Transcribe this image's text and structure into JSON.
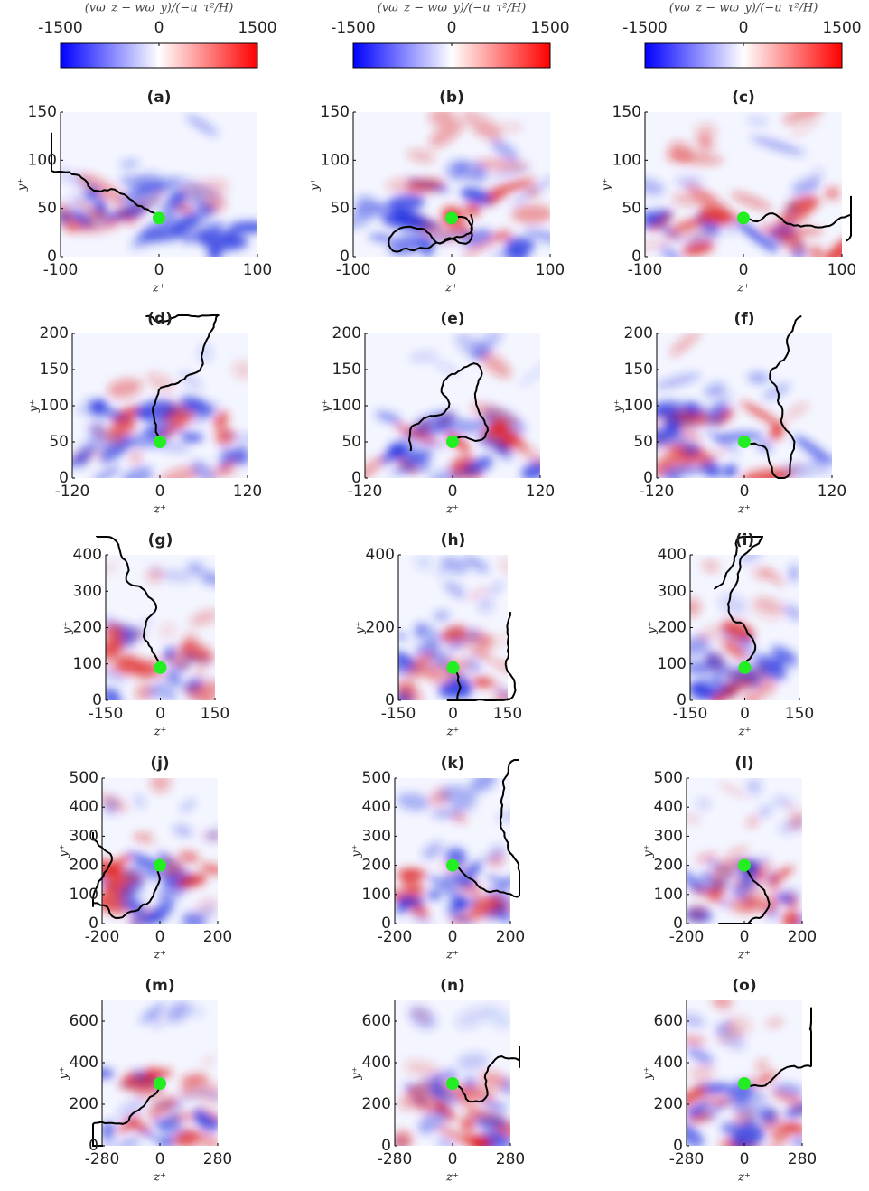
{
  "colorbars": [
    {
      "label": "(vω_z − wω_y)/(−u_τ²/H)",
      "clim": [
        -1500,
        1500
      ],
      "ticks": [
        -1500,
        0,
        1500
      ],
      "colors": [
        "#0000ff",
        "#ffffff",
        "#ff0000"
      ]
    },
    {
      "label": "(vω_z − wω_y)/(−u_τ²/H)",
      "clim": [
        -1500,
        1500
      ],
      "ticks": [
        -1500,
        0,
        1500
      ],
      "colors": [
        "#0000ff",
        "#ffffff",
        "#ff0000"
      ]
    },
    {
      "label": "(vω_z − wω_y)/(−u_τ²/H)",
      "clim": [
        -1500,
        1500
      ],
      "ticks": [
        -1500,
        0,
        1500
      ],
      "colors": [
        "#0000ff",
        "#ffffff",
        "#ff0000"
      ]
    }
  ],
  "chart_data": [
    {
      "type": "heatmap",
      "title": "(a)",
      "xlabel": "z⁺",
      "ylabel": "y⁺",
      "xlim": [
        -100,
        100
      ],
      "ylim": [
        0,
        150
      ],
      "xticks": [
        -100,
        0,
        100
      ],
      "yticks": [
        0,
        50,
        100,
        150
      ],
      "marker": [
        0,
        40
      ],
      "marker_color": "#22ee22"
    },
    {
      "type": "heatmap",
      "title": "(b)",
      "xlabel": "z⁺",
      "ylabel": "y⁺",
      "xlim": [
        -100,
        100
      ],
      "ylim": [
        0,
        150
      ],
      "xticks": [
        -100,
        0,
        100
      ],
      "yticks": [
        0,
        50,
        100,
        150
      ],
      "marker": [
        0,
        40
      ],
      "marker_color": "#22ee22"
    },
    {
      "type": "heatmap",
      "title": "(c)",
      "xlabel": "z⁺",
      "ylabel": "y⁺",
      "xlim": [
        -100,
        100
      ],
      "ylim": [
        0,
        150
      ],
      "xticks": [
        -100,
        0,
        100
      ],
      "yticks": [
        0,
        50,
        100,
        150
      ],
      "marker": [
        0,
        40
      ],
      "marker_color": "#22ee22"
    },
    {
      "type": "heatmap",
      "title": "(d)",
      "xlabel": "z⁺",
      "ylabel": "y⁺",
      "xlim": [
        -120,
        120
      ],
      "ylim": [
        0,
        200
      ],
      "xticks": [
        -120,
        0,
        120
      ],
      "yticks": [
        0,
        50,
        100,
        150,
        200
      ],
      "marker": [
        0,
        50
      ],
      "marker_color": "#22ee22"
    },
    {
      "type": "heatmap",
      "title": "(e)",
      "xlabel": "z⁺",
      "ylabel": "y⁺",
      "xlim": [
        -120,
        120
      ],
      "ylim": [
        0,
        200
      ],
      "xticks": [
        -120,
        0,
        120
      ],
      "yticks": [
        0,
        50,
        100,
        150,
        200
      ],
      "marker": [
        0,
        50
      ],
      "marker_color": "#22ee22"
    },
    {
      "type": "heatmap",
      "title": "(f)",
      "xlabel": "z⁺",
      "ylabel": "y⁺",
      "xlim": [
        -120,
        120
      ],
      "ylim": [
        0,
        200
      ],
      "xticks": [
        -120,
        0,
        120
      ],
      "yticks": [
        0,
        50,
        100,
        150,
        200
      ],
      "marker": [
        0,
        50
      ],
      "marker_color": "#22ee22"
    },
    {
      "type": "heatmap",
      "title": "(g)",
      "xlabel": "z⁺",
      "ylabel": "y⁺",
      "xlim": [
        -150,
        150
      ],
      "ylim": [
        0,
        400
      ],
      "xticks": [
        -150,
        0,
        150
      ],
      "yticks": [
        0,
        100,
        200,
        300,
        400
      ],
      "marker": [
        0,
        90
      ],
      "marker_color": "#22ee22"
    },
    {
      "type": "heatmap",
      "title": "(h)",
      "xlabel": "z⁺",
      "ylabel": "y⁺",
      "xlim": [
        -150,
        150
      ],
      "ylim": [
        0,
        400
      ],
      "xticks": [
        -150,
        0,
        150
      ],
      "yticks": [
        0,
        200,
        400
      ],
      "marker": [
        0,
        90
      ],
      "marker_color": "#22ee22"
    },
    {
      "type": "heatmap",
      "title": "(i)",
      "xlabel": "z⁺",
      "ylabel": "y⁺",
      "xlim": [
        -150,
        150
      ],
      "ylim": [
        0,
        400
      ],
      "xticks": [
        -150,
        0,
        150
      ],
      "yticks": [
        0,
        100,
        200,
        300,
        400
      ],
      "marker": [
        0,
        90
      ],
      "marker_color": "#22ee22"
    },
    {
      "type": "heatmap",
      "title": "(j)",
      "xlabel": "z⁺",
      "ylabel": "y⁺",
      "xlim": [
        -200,
        200
      ],
      "ylim": [
        0,
        500
      ],
      "xticks": [
        -200,
        0,
        200
      ],
      "yticks": [
        0,
        100,
        200,
        300,
        400,
        500
      ],
      "marker": [
        0,
        200
      ],
      "marker_color": "#22ee22"
    },
    {
      "type": "heatmap",
      "title": "(k)",
      "xlabel": "z⁺",
      "ylabel": "y⁺",
      "xlim": [
        -200,
        200
      ],
      "ylim": [
        0,
        500
      ],
      "xticks": [
        -200,
        0,
        200
      ],
      "yticks": [
        0,
        100,
        200,
        300,
        400,
        500
      ],
      "marker": [
        0,
        200
      ],
      "marker_color": "#22ee22"
    },
    {
      "type": "heatmap",
      "title": "(l)",
      "xlabel": "z⁺",
      "ylabel": "y⁺",
      "xlim": [
        -200,
        200
      ],
      "ylim": [
        0,
        500
      ],
      "xticks": [
        -200,
        0,
        200
      ],
      "yticks": [
        0,
        100,
        200,
        300,
        400,
        500
      ],
      "marker": [
        0,
        200
      ],
      "marker_color": "#22ee22"
    },
    {
      "type": "heatmap",
      "title": "(m)",
      "xlabel": "z⁺",
      "ylabel": "y⁺",
      "xlim": [
        -280,
        280
      ],
      "ylim": [
        0,
        700
      ],
      "xticks": [
        -280,
        0,
        280
      ],
      "yticks": [
        0,
        200,
        400,
        600
      ],
      "marker": [
        0,
        300
      ],
      "marker_color": "#22ee22"
    },
    {
      "type": "heatmap",
      "title": "(n)",
      "xlabel": "z⁺",
      "ylabel": "y⁺",
      "xlim": [
        -280,
        280
      ],
      "ylim": [
        0,
        700
      ],
      "xticks": [
        -280,
        0,
        280
      ],
      "yticks": [
        0,
        200,
        400,
        600
      ],
      "marker": [
        0,
        300
      ],
      "marker_color": "#22ee22"
    },
    {
      "type": "heatmap",
      "title": "(o)",
      "xlabel": "z⁺",
      "ylabel": "y⁺",
      "xlim": [
        -280,
        280
      ],
      "ylim": [
        0,
        700
      ],
      "xticks": [
        -280,
        0,
        280
      ],
      "yticks": [
        0,
        200,
        400,
        600
      ],
      "marker": [
        0,
        300
      ],
      "marker_color": "#22ee22"
    }
  ]
}
